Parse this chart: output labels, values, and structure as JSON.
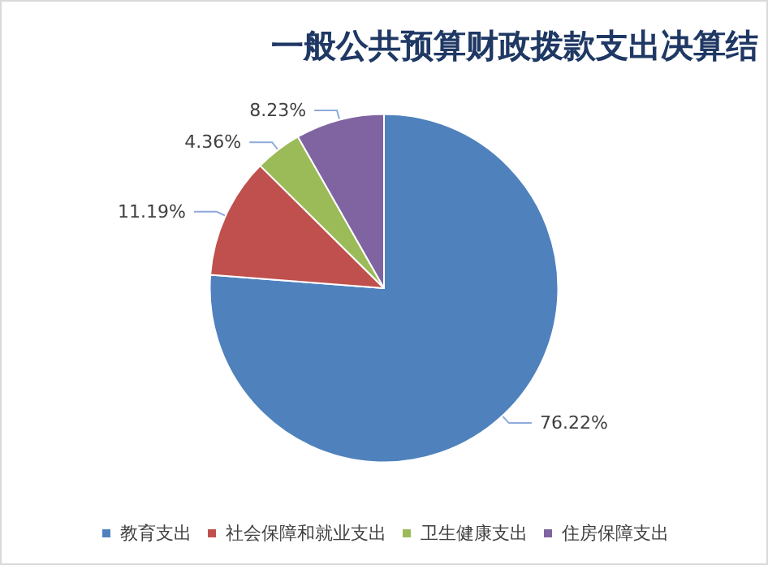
{
  "chart_data": {
    "type": "pie",
    "title": "一般公共预算财政拨款支出决算结",
    "categories": [
      "教育支出",
      "社会保障和就业支出",
      "卫生健康支出",
      "住房保障支出"
    ],
    "values": [
      76.22,
      11.19,
      4.36,
      8.23
    ],
    "colors": [
      "#4f81bd",
      "#c0504d",
      "#9bbb59",
      "#8064a2"
    ],
    "value_labels": [
      "76.22%",
      "11.19%",
      "4.36%",
      "8.23%"
    ],
    "legend": "bottom"
  }
}
